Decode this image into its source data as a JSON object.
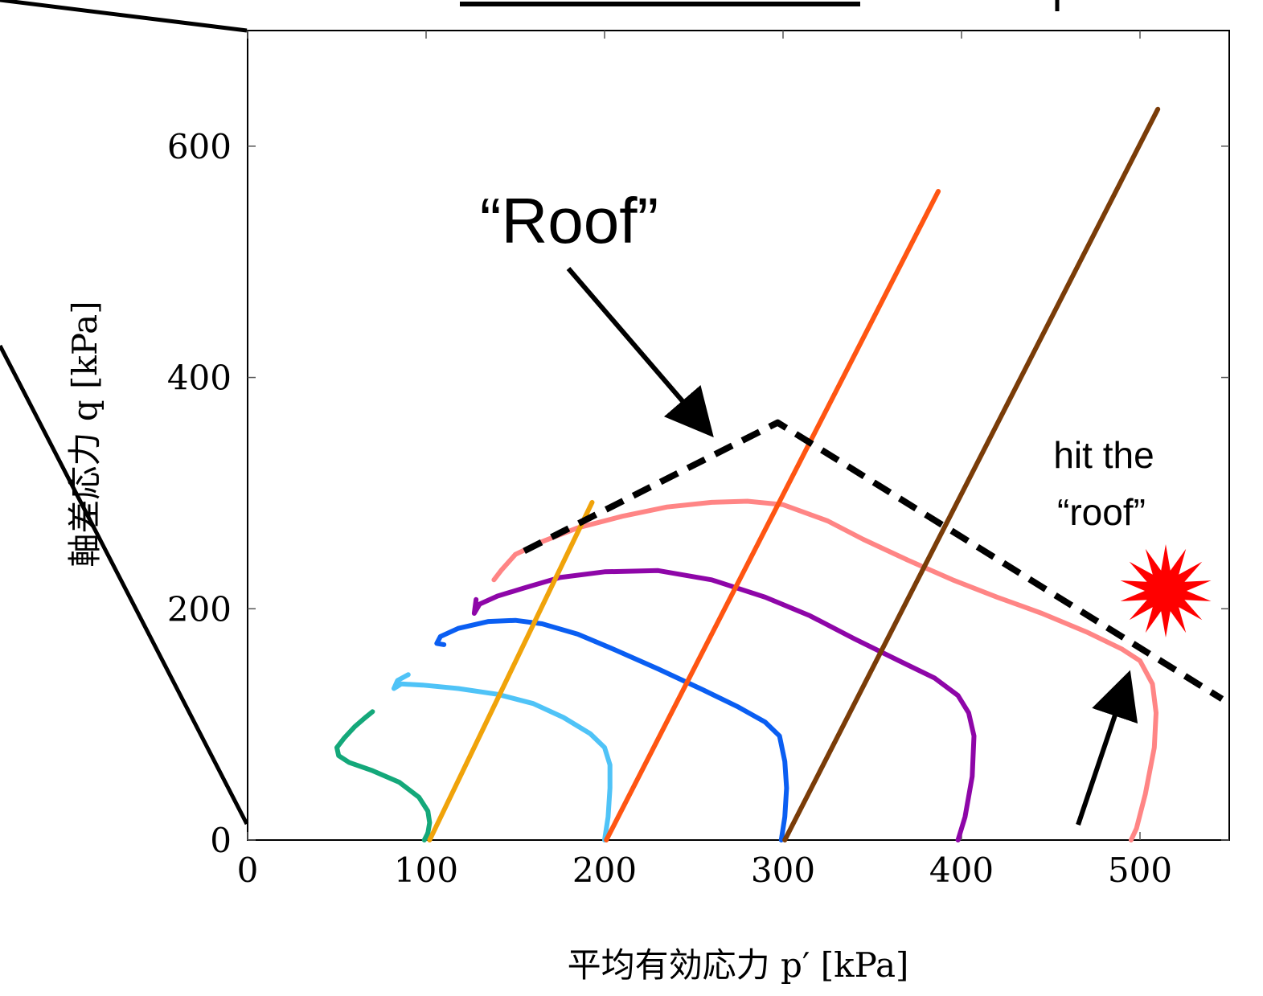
{
  "chart_data": {
    "type": "line",
    "xlabel": "平均有効応力 p′ [kPa]",
    "ylabel": "軸差応力 q [kPa]",
    "xlim": [
      0,
      550
    ],
    "ylim": [
      0,
      700
    ],
    "xticks": [
      0,
      100,
      200,
      300,
      400,
      500
    ],
    "yticks": [
      0,
      200,
      400,
      600
    ],
    "grid": false,
    "series": [
      {
        "color": "#14a87a",
        "points": [
          [
            99,
            0
          ],
          [
            101,
            6
          ],
          [
            102,
            15
          ],
          [
            101,
            25
          ],
          [
            96,
            37
          ],
          [
            85,
            50
          ],
          [
            70,
            60
          ],
          [
            57,
            67
          ],
          [
            51,
            73
          ],
          [
            50,
            80
          ],
          [
            54,
            88
          ],
          [
            60,
            98
          ],
          [
            66,
            106
          ],
          [
            70,
            111
          ]
        ]
      },
      {
        "color": "#4fc3f7",
        "points": [
          [
            200,
            0
          ],
          [
            202,
            20
          ],
          [
            203,
            45
          ],
          [
            203,
            65
          ],
          [
            200,
            80
          ],
          [
            192,
            92
          ],
          [
            177,
            106
          ],
          [
            160,
            118
          ],
          [
            140,
            126
          ],
          [
            118,
            131
          ],
          [
            98,
            134
          ],
          [
            86,
            135
          ],
          [
            82,
            131
          ],
          [
            84,
            138
          ],
          [
            90,
            143
          ]
        ]
      },
      {
        "color": "#0a5ef2",
        "points": [
          [
            299,
            0
          ],
          [
            301,
            20
          ],
          [
            302,
            45
          ],
          [
            301,
            68
          ],
          [
            298,
            90
          ],
          [
            290,
            102
          ],
          [
            275,
            115
          ],
          [
            255,
            130
          ],
          [
            230,
            148
          ],
          [
            205,
            165
          ],
          [
            185,
            178
          ],
          [
            165,
            187
          ],
          [
            150,
            190
          ],
          [
            135,
            189
          ],
          [
            118,
            183
          ],
          [
            108,
            176
          ],
          [
            106,
            170
          ],
          [
            110,
            169
          ]
        ]
      },
      {
        "color": "#8e06a8",
        "points": [
          [
            398,
            0
          ],
          [
            402,
            20
          ],
          [
            406,
            55
          ],
          [
            407,
            90
          ],
          [
            404,
            110
          ],
          [
            398,
            125
          ],
          [
            385,
            140
          ],
          [
            365,
            155
          ],
          [
            340,
            174
          ],
          [
            315,
            194
          ],
          [
            290,
            210
          ],
          [
            260,
            225
          ],
          [
            230,
            233
          ],
          [
            200,
            232
          ],
          [
            175,
            227
          ],
          [
            155,
            218
          ],
          [
            140,
            211
          ],
          [
            130,
            204
          ],
          [
            127,
            196
          ],
          [
            128,
            208
          ]
        ]
      },
      {
        "color": "#ff8585",
        "points": [
          [
            495,
            0
          ],
          [
            498,
            10
          ],
          [
            503,
            40
          ],
          [
            508,
            80
          ],
          [
            509,
            110
          ],
          [
            507,
            135
          ],
          [
            500,
            155
          ],
          [
            490,
            165
          ],
          [
            470,
            180
          ],
          [
            445,
            196
          ],
          [
            420,
            210
          ],
          [
            395,
            225
          ],
          [
            370,
            242
          ],
          [
            345,
            260
          ],
          [
            325,
            276
          ],
          [
            300,
            290
          ],
          [
            280,
            293
          ],
          [
            260,
            292
          ],
          [
            235,
            288
          ],
          [
            210,
            280
          ],
          [
            185,
            270
          ],
          [
            165,
            258
          ],
          [
            150,
            247
          ],
          [
            142,
            233
          ],
          [
            138,
            225
          ]
        ]
      },
      {
        "color": "#f0a30a",
        "points": [
          [
            102,
            0
          ],
          [
            193,
            292
          ]
        ]
      },
      {
        "color": "#ff5512",
        "points": [
          [
            201,
            0
          ],
          [
            387,
            561
          ]
        ]
      },
      {
        "color": "#7a3c08",
        "points": [
          [
            301,
            0
          ],
          [
            510,
            632
          ]
        ]
      },
      {
        "color": "#000000",
        "dashed": true,
        "points": [
          [
            155,
            250
          ],
          [
            297,
            361
          ],
          [
            546,
            122
          ]
        ]
      }
    ],
    "annotations": [
      {
        "text": "“Roof”"
      },
      {
        "text": "hit the"
      },
      {
        "text": "“roof”"
      }
    ]
  }
}
